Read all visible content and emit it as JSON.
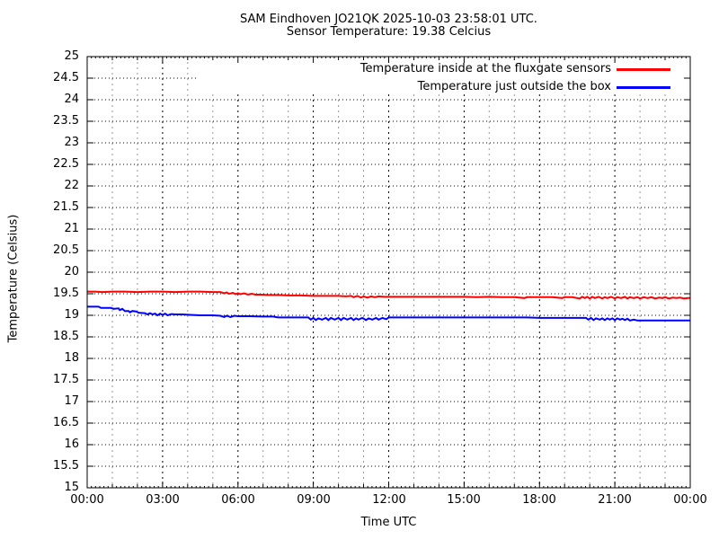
{
  "title": {
    "line1": "SAM Eindhoven JO21QK 2025-10-03 23:58:01 UTC.",
    "line2": "Sensor Temperature: 19.38 Celcius"
  },
  "axes": {
    "y_label": "Temperature (Celsius)",
    "x_label": "Time UTC",
    "y_tick_labels": [
      "15",
      "15.5",
      "16",
      "16.5",
      "17",
      "17.5",
      "18",
      "18.5",
      "19",
      "19.5",
      "20",
      "20.5",
      "21",
      "21.5",
      "22",
      "22.5",
      "23",
      "23.5",
      "24",
      "24.5",
      "25"
    ],
    "x_tick_labels": [
      "00:00",
      "03:00",
      "06:00",
      "09:00",
      "12:00",
      "15:00",
      "18:00",
      "21:00",
      "00:00"
    ]
  },
  "legend": [
    {
      "label": "Temperature inside at the fluxgate sensors",
      "color": "#ff0000"
    },
    {
      "label": "Temperature just outside the box",
      "color": "#0000ff"
    }
  ],
  "colors": {
    "inside_line": "#ff0000",
    "outside_line": "#0000ff",
    "major_grid": "#000000",
    "minor_grid": "#9a9a9a",
    "border": "#000000"
  },
  "chart_data": {
    "type": "line",
    "title": "SAM Eindhoven JO21QK 2025-10-03 23:58:01 UTC. / Sensor Temperature: 19.38 Celcius",
    "xlabel": "Time UTC",
    "ylabel": "Temperature (Celsius)",
    "xlim_hours": [
      0,
      24
    ],
    "ylim": [
      15,
      25
    ],
    "y_tick_step": 0.5,
    "x_major_tick_hours": 3,
    "x_minor_tick_hours": 1,
    "grid": true,
    "legend_position": "top-right",
    "series": [
      {
        "name": "Temperature inside at the fluxgate sensors",
        "color": "#ff0000",
        "points": [
          [
            0.0,
            19.55
          ],
          [
            0.3,
            19.55
          ],
          [
            0.6,
            19.54
          ],
          [
            1.0,
            19.55
          ],
          [
            1.5,
            19.55
          ],
          [
            2.0,
            19.54
          ],
          [
            2.5,
            19.55
          ],
          [
            3.0,
            19.55
          ],
          [
            3.5,
            19.54
          ],
          [
            4.0,
            19.55
          ],
          [
            4.5,
            19.55
          ],
          [
            5.0,
            19.54
          ],
          [
            5.3,
            19.54
          ],
          [
            5.45,
            19.51
          ],
          [
            5.55,
            19.53
          ],
          [
            5.65,
            19.5
          ],
          [
            5.8,
            19.52
          ],
          [
            5.9,
            19.49
          ],
          [
            6.0,
            19.51
          ],
          [
            6.1,
            19.49
          ],
          [
            6.25,
            19.51
          ],
          [
            6.4,
            19.48
          ],
          [
            6.55,
            19.5
          ],
          [
            6.7,
            19.48
          ],
          [
            6.9,
            19.48
          ],
          [
            7.2,
            19.47
          ],
          [
            7.6,
            19.47
          ],
          [
            8.0,
            19.46
          ],
          [
            8.5,
            19.46
          ],
          [
            9.0,
            19.45
          ],
          [
            9.5,
            19.45
          ],
          [
            10.0,
            19.45
          ],
          [
            10.3,
            19.44
          ],
          [
            10.5,
            19.45
          ],
          [
            10.6,
            19.42
          ],
          [
            10.75,
            19.45
          ],
          [
            10.9,
            19.41
          ],
          [
            11.0,
            19.44
          ],
          [
            11.15,
            19.41
          ],
          [
            11.3,
            19.44
          ],
          [
            11.45,
            19.42
          ],
          [
            11.6,
            19.44
          ],
          [
            11.8,
            19.43
          ],
          [
            12.5,
            19.43
          ],
          [
            13.0,
            19.43
          ],
          [
            13.5,
            19.43
          ],
          [
            14.0,
            19.43
          ],
          [
            14.5,
            19.43
          ],
          [
            15.0,
            19.43
          ],
          [
            15.5,
            19.42
          ],
          [
            16.0,
            19.43
          ],
          [
            16.5,
            19.42
          ],
          [
            17.0,
            19.42
          ],
          [
            17.4,
            19.4
          ],
          [
            17.5,
            19.42
          ],
          [
            18.0,
            19.42
          ],
          [
            18.5,
            19.42
          ],
          [
            18.9,
            19.4
          ],
          [
            19.0,
            19.42
          ],
          [
            19.3,
            19.42
          ],
          [
            19.6,
            19.39
          ],
          [
            19.7,
            19.43
          ],
          [
            19.8,
            19.4
          ],
          [
            19.9,
            19.43
          ],
          [
            20.0,
            19.39
          ],
          [
            20.1,
            19.43
          ],
          [
            20.2,
            19.4
          ],
          [
            20.35,
            19.43
          ],
          [
            20.5,
            19.39
          ],
          [
            20.6,
            19.42
          ],
          [
            20.7,
            19.4
          ],
          [
            20.85,
            19.43
          ],
          [
            21.0,
            19.39
          ],
          [
            21.1,
            19.42
          ],
          [
            21.25,
            19.4
          ],
          [
            21.4,
            19.43
          ],
          [
            21.5,
            19.39
          ],
          [
            21.6,
            19.42
          ],
          [
            21.75,
            19.4
          ],
          [
            21.9,
            19.42
          ],
          [
            22.0,
            19.39
          ],
          [
            22.15,
            19.42
          ],
          [
            22.3,
            19.4
          ],
          [
            22.45,
            19.42
          ],
          [
            22.6,
            19.39
          ],
          [
            22.75,
            19.41
          ],
          [
            22.9,
            19.4
          ],
          [
            23.0,
            19.42
          ],
          [
            23.15,
            19.39
          ],
          [
            23.3,
            19.41
          ],
          [
            23.45,
            19.4
          ],
          [
            23.6,
            19.41
          ],
          [
            23.75,
            19.39
          ],
          [
            23.9,
            19.4
          ],
          [
            24.0,
            19.4
          ]
        ]
      },
      {
        "name": "Temperature just outside the box",
        "color": "#0000ff",
        "points": [
          [
            0.0,
            19.2
          ],
          [
            0.45,
            19.2
          ],
          [
            0.55,
            19.17
          ],
          [
            0.95,
            19.17
          ],
          [
            1.05,
            19.15
          ],
          [
            1.25,
            19.16
          ],
          [
            1.3,
            19.12
          ],
          [
            1.4,
            19.15
          ],
          [
            1.5,
            19.1
          ],
          [
            1.65,
            19.1
          ],
          [
            1.7,
            19.07
          ],
          [
            1.8,
            19.1
          ],
          [
            1.95,
            19.09
          ],
          [
            2.05,
            19.06
          ],
          [
            2.3,
            19.05
          ],
          [
            2.4,
            19.02
          ],
          [
            2.5,
            19.05
          ],
          [
            2.6,
            19.02
          ],
          [
            2.7,
            19.04
          ],
          [
            2.8,
            19.0
          ],
          [
            2.9,
            19.04
          ],
          [
            3.0,
            19.01
          ],
          [
            3.1,
            19.04
          ],
          [
            3.2,
            19.0
          ],
          [
            3.35,
            19.03
          ],
          [
            3.5,
            19.02
          ],
          [
            3.8,
            19.02
          ],
          [
            4.1,
            19.01
          ],
          [
            4.5,
            19.0
          ],
          [
            5.0,
            19.0
          ],
          [
            5.3,
            18.99
          ],
          [
            5.45,
            18.96
          ],
          [
            5.55,
            18.99
          ],
          [
            5.7,
            18.96
          ],
          [
            5.85,
            18.99
          ],
          [
            6.0,
            18.98
          ],
          [
            6.5,
            18.98
          ],
          [
            7.0,
            18.97
          ],
          [
            7.4,
            18.97
          ],
          [
            7.6,
            18.95
          ],
          [
            8.0,
            18.95
          ],
          [
            8.5,
            18.95
          ],
          [
            8.8,
            18.95
          ],
          [
            8.9,
            18.9
          ],
          [
            9.0,
            18.94
          ],
          [
            9.1,
            18.89
          ],
          [
            9.2,
            18.93
          ],
          [
            9.35,
            18.9
          ],
          [
            9.5,
            18.94
          ],
          [
            9.6,
            18.89
          ],
          [
            9.7,
            18.94
          ],
          [
            9.85,
            18.9
          ],
          [
            10.0,
            18.94
          ],
          [
            10.1,
            18.89
          ],
          [
            10.2,
            18.94
          ],
          [
            10.35,
            18.9
          ],
          [
            10.5,
            18.94
          ],
          [
            10.6,
            18.89
          ],
          [
            10.7,
            18.93
          ],
          [
            10.8,
            18.9
          ],
          [
            10.95,
            18.94
          ],
          [
            11.1,
            18.89
          ],
          [
            11.2,
            18.93
          ],
          [
            11.35,
            18.9
          ],
          [
            11.5,
            18.94
          ],
          [
            11.6,
            18.9
          ],
          [
            11.75,
            18.94
          ],
          [
            11.9,
            18.91
          ],
          [
            12.0,
            18.95
          ],
          [
            12.5,
            18.95
          ],
          [
            13.0,
            18.95
          ],
          [
            13.5,
            18.95
          ],
          [
            14.0,
            18.95
          ],
          [
            14.5,
            18.95
          ],
          [
            15.0,
            18.95
          ],
          [
            15.5,
            18.95
          ],
          [
            16.0,
            18.95
          ],
          [
            16.5,
            18.95
          ],
          [
            17.0,
            18.95
          ],
          [
            17.5,
            18.95
          ],
          [
            18.0,
            18.94
          ],
          [
            18.5,
            18.94
          ],
          [
            19.0,
            18.94
          ],
          [
            19.5,
            18.94
          ],
          [
            19.85,
            18.94
          ],
          [
            19.95,
            18.9
          ],
          [
            20.05,
            18.94
          ],
          [
            20.15,
            18.89
          ],
          [
            20.25,
            18.93
          ],
          [
            20.4,
            18.9
          ],
          [
            20.5,
            18.93
          ],
          [
            20.6,
            18.89
          ],
          [
            20.7,
            18.93
          ],
          [
            20.8,
            18.9
          ],
          [
            20.9,
            18.93
          ],
          [
            21.0,
            18.89
          ],
          [
            21.1,
            18.93
          ],
          [
            21.2,
            18.9
          ],
          [
            21.3,
            18.92
          ],
          [
            21.4,
            18.89
          ],
          [
            21.5,
            18.92
          ],
          [
            21.6,
            18.88
          ],
          [
            21.75,
            18.9
          ],
          [
            21.9,
            18.88
          ],
          [
            22.2,
            18.88
          ],
          [
            22.6,
            18.88
          ],
          [
            23.0,
            18.88
          ],
          [
            23.4,
            18.88
          ],
          [
            23.7,
            18.88
          ],
          [
            24.0,
            18.88
          ]
        ]
      }
    ]
  }
}
